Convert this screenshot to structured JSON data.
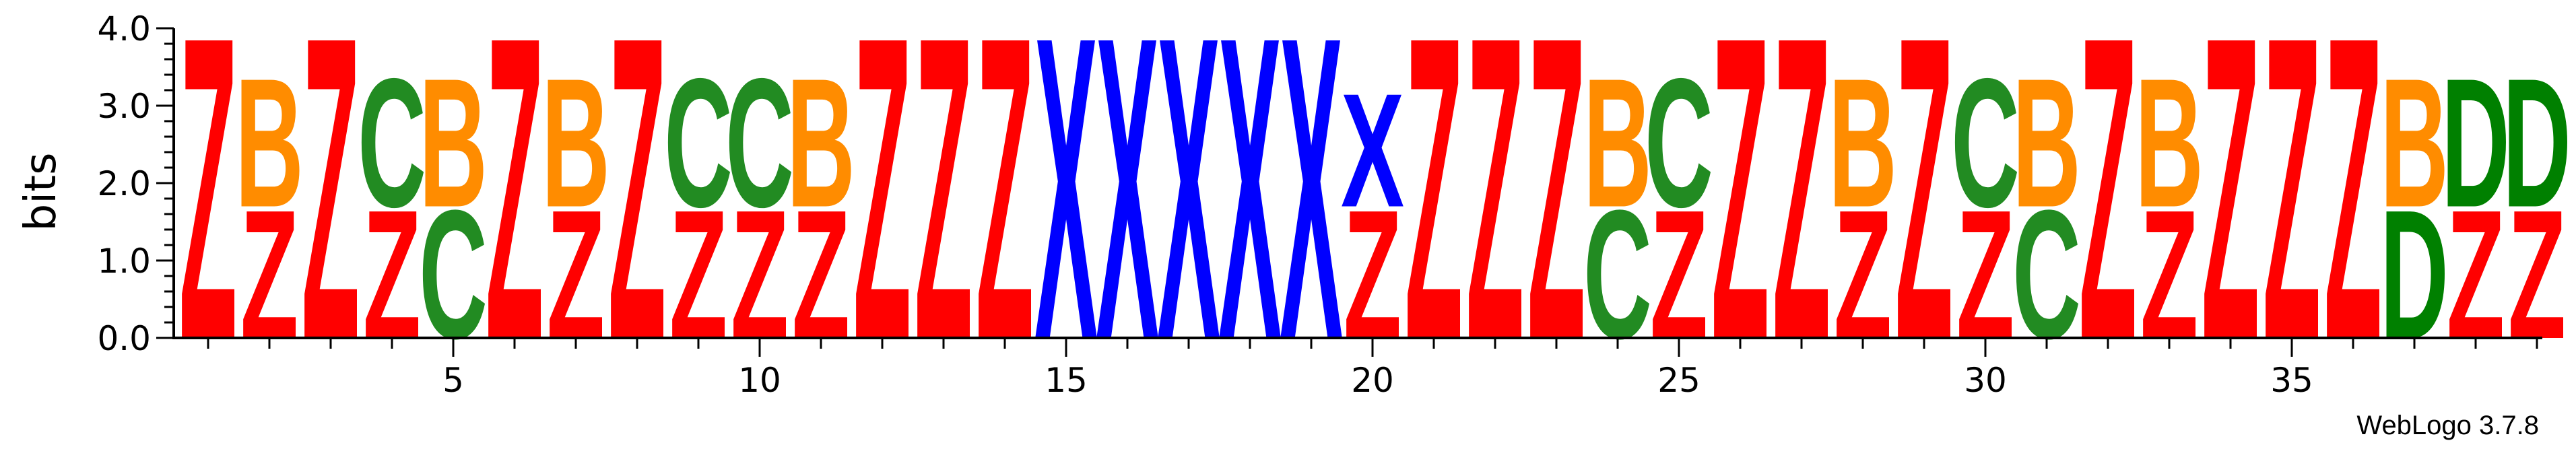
{
  "chart_data": {
    "type": "sequence-logo",
    "ylabel": "bits",
    "ylim": [
      0,
      4.0
    ],
    "yticks": [
      "0.0",
      "1.0",
      "2.0",
      "3.0",
      "4.0"
    ],
    "xticks": [
      5,
      10,
      15,
      20,
      25,
      30,
      35
    ],
    "x_range": [
      1,
      39
    ],
    "credit": "WebLogo 3.7.8",
    "colors": {
      "Z": "#ff0000",
      "B": "#ff8c00",
      "C": "#228b22",
      "X": "#0000ff",
      "D": "#008000"
    },
    "positions": [
      {
        "pos": 1,
        "stack": [
          {
            "letter": "Z",
            "bits": 4.0
          }
        ]
      },
      {
        "pos": 2,
        "stack": [
          {
            "letter": "Z",
            "bits": 1.7
          },
          {
            "letter": "B",
            "bits": 1.7
          }
        ]
      },
      {
        "pos": 3,
        "stack": [
          {
            "letter": "Z",
            "bits": 4.0
          }
        ]
      },
      {
        "pos": 4,
        "stack": [
          {
            "letter": "Z",
            "bits": 1.7
          },
          {
            "letter": "C",
            "bits": 1.7
          }
        ]
      },
      {
        "pos": 5,
        "stack": [
          {
            "letter": "C",
            "bits": 1.7
          },
          {
            "letter": "B",
            "bits": 1.7
          }
        ]
      },
      {
        "pos": 6,
        "stack": [
          {
            "letter": "Z",
            "bits": 4.0
          }
        ]
      },
      {
        "pos": 7,
        "stack": [
          {
            "letter": "Z",
            "bits": 1.7
          },
          {
            "letter": "B",
            "bits": 1.7
          }
        ]
      },
      {
        "pos": 8,
        "stack": [
          {
            "letter": "Z",
            "bits": 4.0
          }
        ]
      },
      {
        "pos": 9,
        "stack": [
          {
            "letter": "Z",
            "bits": 1.7
          },
          {
            "letter": "C",
            "bits": 1.7
          }
        ]
      },
      {
        "pos": 10,
        "stack": [
          {
            "letter": "Z",
            "bits": 1.7
          },
          {
            "letter": "C",
            "bits": 1.7
          }
        ]
      },
      {
        "pos": 11,
        "stack": [
          {
            "letter": "Z",
            "bits": 1.7
          },
          {
            "letter": "B",
            "bits": 1.7
          }
        ]
      },
      {
        "pos": 12,
        "stack": [
          {
            "letter": "Z",
            "bits": 4.0
          }
        ]
      },
      {
        "pos": 13,
        "stack": [
          {
            "letter": "Z",
            "bits": 4.0
          }
        ]
      },
      {
        "pos": 14,
        "stack": [
          {
            "letter": "Z",
            "bits": 4.0
          }
        ]
      },
      {
        "pos": 15,
        "stack": [
          {
            "letter": "X",
            "bits": 4.0
          }
        ]
      },
      {
        "pos": 16,
        "stack": [
          {
            "letter": "X",
            "bits": 4.0
          }
        ]
      },
      {
        "pos": 17,
        "stack": [
          {
            "letter": "X",
            "bits": 4.0
          }
        ]
      },
      {
        "pos": 18,
        "stack": [
          {
            "letter": "X",
            "bits": 4.0
          }
        ]
      },
      {
        "pos": 19,
        "stack": [
          {
            "letter": "X",
            "bits": 4.0
          }
        ]
      },
      {
        "pos": 20,
        "stack": [
          {
            "letter": "Z",
            "bits": 1.7
          },
          {
            "letter": "X",
            "bits": 1.5
          }
        ]
      },
      {
        "pos": 21,
        "stack": [
          {
            "letter": "Z",
            "bits": 4.0
          }
        ]
      },
      {
        "pos": 22,
        "stack": [
          {
            "letter": "Z",
            "bits": 4.0
          }
        ]
      },
      {
        "pos": 23,
        "stack": [
          {
            "letter": "Z",
            "bits": 4.0
          }
        ]
      },
      {
        "pos": 24,
        "stack": [
          {
            "letter": "C",
            "bits": 1.7
          },
          {
            "letter": "B",
            "bits": 1.7
          }
        ]
      },
      {
        "pos": 25,
        "stack": [
          {
            "letter": "Z",
            "bits": 1.7
          },
          {
            "letter": "C",
            "bits": 1.7
          }
        ]
      },
      {
        "pos": 26,
        "stack": [
          {
            "letter": "Z",
            "bits": 4.0
          }
        ]
      },
      {
        "pos": 27,
        "stack": [
          {
            "letter": "Z",
            "bits": 4.0
          }
        ]
      },
      {
        "pos": 28,
        "stack": [
          {
            "letter": "Z",
            "bits": 1.7
          },
          {
            "letter": "B",
            "bits": 1.7
          }
        ]
      },
      {
        "pos": 29,
        "stack": [
          {
            "letter": "Z",
            "bits": 4.0
          }
        ]
      },
      {
        "pos": 30,
        "stack": [
          {
            "letter": "Z",
            "bits": 1.7
          },
          {
            "letter": "C",
            "bits": 1.7
          }
        ]
      },
      {
        "pos": 31,
        "stack": [
          {
            "letter": "C",
            "bits": 1.7
          },
          {
            "letter": "B",
            "bits": 1.7
          }
        ]
      },
      {
        "pos": 32,
        "stack": [
          {
            "letter": "Z",
            "bits": 4.0
          }
        ]
      },
      {
        "pos": 33,
        "stack": [
          {
            "letter": "Z",
            "bits": 1.7
          },
          {
            "letter": "B",
            "bits": 1.7
          }
        ]
      },
      {
        "pos": 34,
        "stack": [
          {
            "letter": "Z",
            "bits": 4.0
          }
        ]
      },
      {
        "pos": 35,
        "stack": [
          {
            "letter": "Z",
            "bits": 4.0
          }
        ]
      },
      {
        "pos": 36,
        "stack": [
          {
            "letter": "Z",
            "bits": 4.0
          }
        ]
      },
      {
        "pos": 37,
        "stack": [
          {
            "letter": "D",
            "bits": 1.7
          },
          {
            "letter": "B",
            "bits": 1.7
          }
        ]
      },
      {
        "pos": 38,
        "stack": [
          {
            "letter": "Z",
            "bits": 1.7
          },
          {
            "letter": "D",
            "bits": 1.7
          }
        ]
      },
      {
        "pos": 39,
        "stack": [
          {
            "letter": "Z",
            "bits": 1.7
          },
          {
            "letter": "D",
            "bits": 1.7
          }
        ]
      }
    ]
  }
}
